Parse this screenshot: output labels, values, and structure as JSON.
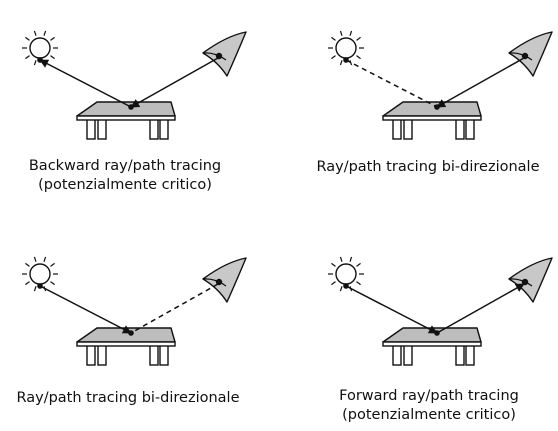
{
  "diagram": {
    "panels": [
      {
        "id": "top-left",
        "caption_lines": [
          "Backward ray/path tracing",
          "(potenzialmente critico)"
        ],
        "light_segment": "solid",
        "eye_segment": "solid",
        "arrows": [
          "table-to-light",
          "eye-to-table"
        ]
      },
      {
        "id": "top-right",
        "caption_lines": [
          "Ray/path tracing bi-direzionale"
        ],
        "light_segment": "dashed",
        "eye_segment": "solid",
        "arrows": [
          "eye-to-table"
        ]
      },
      {
        "id": "bottom-left",
        "caption_lines": [
          "Ray/path tracing bi-direzionale"
        ],
        "light_segment": "solid",
        "eye_segment": "dashed",
        "arrows": [
          "light-to-table"
        ]
      },
      {
        "id": "bottom-right",
        "caption_lines": [
          "Forward ray/path tracing",
          "(potenzialmente critico)"
        ],
        "light_segment": "solid",
        "eye_segment": "solid",
        "arrows": [
          "light-to-table",
          "table-to-eye"
        ]
      }
    ],
    "colors": {
      "stroke": "#111111",
      "table_top": "#bdbdbd",
      "table_legs": "#ffffff",
      "eye_fill": "#c8c8c8",
      "background": "#ffffff"
    }
  }
}
